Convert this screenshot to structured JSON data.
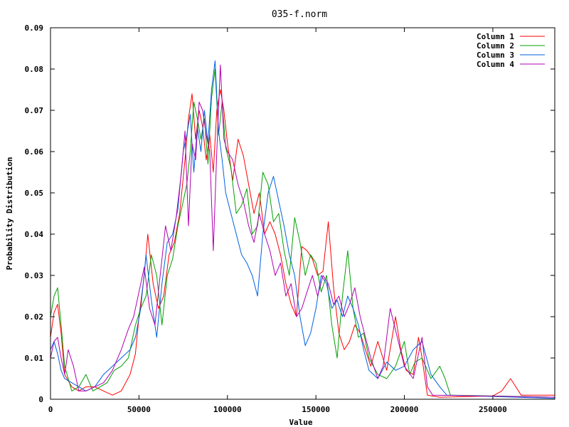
{
  "chart_data": {
    "type": "line",
    "title": "035-f.norm",
    "xlabel": "Value",
    "ylabel": "Probability Distribution",
    "xlim": [
      0,
      285000
    ],
    "ylim": [
      0,
      0.09
    ],
    "xticks": [
      0,
      50000,
      100000,
      150000,
      200000,
      250000
    ],
    "xtick_labels": [
      "0",
      "50000",
      "100000",
      "150000",
      "200000",
      "250000"
    ],
    "yticks": [
      0,
      0.01,
      0.02,
      0.03,
      0.04,
      0.05,
      0.06,
      0.07,
      0.08,
      0.09
    ],
    "ytick_labels": [
      "0",
      "0.01",
      "0.02",
      "0.03",
      "0.04",
      "0.05",
      "0.06",
      "0.07",
      "0.08",
      "0.09"
    ],
    "legend_position": "top-right",
    "grid": false,
    "series": [
      {
        "name": "Column 1",
        "color": "#ff0000",
        "points": [
          [
            0,
            0.015
          ],
          [
            2000,
            0.021
          ],
          [
            4000,
            0.023
          ],
          [
            6000,
            0.016
          ],
          [
            8000,
            0.006
          ],
          [
            12000,
            0.003
          ],
          [
            16000,
            0.002
          ],
          [
            20000,
            0.003
          ],
          [
            25000,
            0.003
          ],
          [
            30000,
            0.002
          ],
          [
            35000,
            0.001
          ],
          [
            40000,
            0.002
          ],
          [
            45000,
            0.006
          ],
          [
            48000,
            0.011
          ],
          [
            50000,
            0.02
          ],
          [
            53000,
            0.03
          ],
          [
            55000,
            0.04
          ],
          [
            58000,
            0.028
          ],
          [
            61000,
            0.022
          ],
          [
            64000,
            0.025
          ],
          [
            67000,
            0.035
          ],
          [
            70000,
            0.038
          ],
          [
            73000,
            0.045
          ],
          [
            76000,
            0.058
          ],
          [
            78000,
            0.068
          ],
          [
            80000,
            0.074
          ],
          [
            82000,
            0.063
          ],
          [
            84000,
            0.07
          ],
          [
            86000,
            0.066
          ],
          [
            88000,
            0.058
          ],
          [
            90000,
            0.064
          ],
          [
            92000,
            0.055
          ],
          [
            94000,
            0.07
          ],
          [
            96000,
            0.075
          ],
          [
            98000,
            0.07
          ],
          [
            100000,
            0.062
          ],
          [
            103000,
            0.053
          ],
          [
            106000,
            0.063
          ],
          [
            109000,
            0.059
          ],
          [
            112000,
            0.052
          ],
          [
            115000,
            0.045
          ],
          [
            118000,
            0.05
          ],
          [
            121000,
            0.04
          ],
          [
            124000,
            0.043
          ],
          [
            127000,
            0.04
          ],
          [
            130000,
            0.035
          ],
          [
            133000,
            0.028
          ],
          [
            136000,
            0.023
          ],
          [
            139000,
            0.02
          ],
          [
            142000,
            0.037
          ],
          [
            145000,
            0.036
          ],
          [
            148000,
            0.034
          ],
          [
            151000,
            0.03
          ],
          [
            154000,
            0.031
          ],
          [
            157000,
            0.043
          ],
          [
            160000,
            0.027
          ],
          [
            163000,
            0.016
          ],
          [
            166000,
            0.012
          ],
          [
            169000,
            0.014
          ],
          [
            172000,
            0.018
          ],
          [
            175000,
            0.016
          ],
          [
            178000,
            0.012
          ],
          [
            181000,
            0.008
          ],
          [
            185000,
            0.014
          ],
          [
            190000,
            0.007
          ],
          [
            195000,
            0.02
          ],
          [
            198000,
            0.012
          ],
          [
            201000,
            0.007
          ],
          [
            205000,
            0.006
          ],
          [
            208000,
            0.015
          ],
          [
            210000,
            0.01
          ],
          [
            213000,
            0.001
          ],
          [
            220000,
            0.0005
          ],
          [
            250000,
            0.0008
          ],
          [
            255000,
            0.002
          ],
          [
            260000,
            0.005
          ],
          [
            263000,
            0.003
          ],
          [
            266000,
            0.001
          ],
          [
            285000,
            0.001
          ]
        ]
      },
      {
        "name": "Column 2",
        "color": "#00a000",
        "points": [
          [
            0,
            0.02
          ],
          [
            2000,
            0.025
          ],
          [
            4000,
            0.027
          ],
          [
            6000,
            0.018
          ],
          [
            8000,
            0.008
          ],
          [
            12000,
            0.002
          ],
          [
            16000,
            0.003
          ],
          [
            20000,
            0.006
          ],
          [
            24000,
            0.002
          ],
          [
            28000,
            0.003
          ],
          [
            32000,
            0.004
          ],
          [
            36000,
            0.007
          ],
          [
            40000,
            0.008
          ],
          [
            44000,
            0.01
          ],
          [
            48000,
            0.018
          ],
          [
            51000,
            0.022
          ],
          [
            54000,
            0.025
          ],
          [
            57000,
            0.035
          ],
          [
            60000,
            0.03
          ],
          [
            63000,
            0.018
          ],
          [
            66000,
            0.03
          ],
          [
            69000,
            0.034
          ],
          [
            72000,
            0.042
          ],
          [
            75000,
            0.048
          ],
          [
            77000,
            0.052
          ],
          [
            79000,
            0.06
          ],
          [
            81000,
            0.072
          ],
          [
            83000,
            0.068
          ],
          [
            85000,
            0.063
          ],
          [
            87000,
            0.068
          ],
          [
            89000,
            0.057
          ],
          [
            91000,
            0.073
          ],
          [
            93000,
            0.08
          ],
          [
            95000,
            0.064
          ],
          [
            97000,
            0.072
          ],
          [
            99000,
            0.061
          ],
          [
            102000,
            0.056
          ],
          [
            105000,
            0.045
          ],
          [
            108000,
            0.047
          ],
          [
            111000,
            0.051
          ],
          [
            114000,
            0.04
          ],
          [
            117000,
            0.042
          ],
          [
            120000,
            0.055
          ],
          [
            123000,
            0.052
          ],
          [
            126000,
            0.043
          ],
          [
            129000,
            0.045
          ],
          [
            132000,
            0.036
          ],
          [
            135000,
            0.03
          ],
          [
            138000,
            0.044
          ],
          [
            141000,
            0.038
          ],
          [
            144000,
            0.03
          ],
          [
            147000,
            0.035
          ],
          [
            150000,
            0.033
          ],
          [
            153000,
            0.026
          ],
          [
            156000,
            0.03
          ],
          [
            159000,
            0.018
          ],
          [
            162000,
            0.01
          ],
          [
            165000,
            0.025
          ],
          [
            168000,
            0.036
          ],
          [
            171000,
            0.022
          ],
          [
            174000,
            0.015
          ],
          [
            177000,
            0.016
          ],
          [
            180000,
            0.01
          ],
          [
            185000,
            0.006
          ],
          [
            190000,
            0.005
          ],
          [
            195000,
            0.008
          ],
          [
            200000,
            0.014
          ],
          [
            203000,
            0.006
          ],
          [
            206000,
            0.009
          ],
          [
            210000,
            0.01
          ],
          [
            215000,
            0.005
          ],
          [
            220000,
            0.008
          ],
          [
            223000,
            0.005
          ],
          [
            226000,
            0.001
          ],
          [
            285000,
            0.0005
          ]
        ]
      },
      {
        "name": "Column 3",
        "color": "#0060e0",
        "points": [
          [
            0,
            0.012
          ],
          [
            2000,
            0.014
          ],
          [
            4000,
            0.011
          ],
          [
            6000,
            0.007
          ],
          [
            8000,
            0.005
          ],
          [
            12000,
            0.004
          ],
          [
            16000,
            0.003
          ],
          [
            20000,
            0.002
          ],
          [
            25000,
            0.003
          ],
          [
            30000,
            0.006
          ],
          [
            35000,
            0.008
          ],
          [
            40000,
            0.01
          ],
          [
            45000,
            0.012
          ],
          [
            48000,
            0.015
          ],
          [
            51000,
            0.022
          ],
          [
            54000,
            0.035
          ],
          [
            57000,
            0.024
          ],
          [
            60000,
            0.015
          ],
          [
            63000,
            0.028
          ],
          [
            66000,
            0.038
          ],
          [
            69000,
            0.04
          ],
          [
            72000,
            0.046
          ],
          [
            75000,
            0.06
          ],
          [
            77000,
            0.064
          ],
          [
            79000,
            0.069
          ],
          [
            81000,
            0.055
          ],
          [
            83000,
            0.066
          ],
          [
            85000,
            0.06
          ],
          [
            87000,
            0.07
          ],
          [
            89000,
            0.062
          ],
          [
            91000,
            0.075
          ],
          [
            93000,
            0.082
          ],
          [
            95000,
            0.065
          ],
          [
            97000,
            0.058
          ],
          [
            99000,
            0.05
          ],
          [
            102000,
            0.045
          ],
          [
            105000,
            0.04
          ],
          [
            108000,
            0.035
          ],
          [
            111000,
            0.033
          ],
          [
            114000,
            0.03
          ],
          [
            117000,
            0.025
          ],
          [
            120000,
            0.04
          ],
          [
            123000,
            0.05
          ],
          [
            126000,
            0.054
          ],
          [
            129000,
            0.048
          ],
          [
            132000,
            0.042
          ],
          [
            135000,
            0.035
          ],
          [
            138000,
            0.03
          ],
          [
            141000,
            0.02
          ],
          [
            144000,
            0.013
          ],
          [
            147000,
            0.016
          ],
          [
            150000,
            0.022
          ],
          [
            153000,
            0.03
          ],
          [
            156000,
            0.028
          ],
          [
            159000,
            0.022
          ],
          [
            162000,
            0.024
          ],
          [
            165000,
            0.02
          ],
          [
            168000,
            0.025
          ],
          [
            171000,
            0.022
          ],
          [
            174000,
            0.018
          ],
          [
            177000,
            0.012
          ],
          [
            180000,
            0.007
          ],
          [
            185000,
            0.005
          ],
          [
            190000,
            0.009
          ],
          [
            195000,
            0.007
          ],
          [
            200000,
            0.008
          ],
          [
            205000,
            0.012
          ],
          [
            210000,
            0.014
          ],
          [
            215000,
            0.006
          ],
          [
            220000,
            0.003
          ],
          [
            224000,
            0.001
          ],
          [
            285000,
            0.0002
          ]
        ]
      },
      {
        "name": "Column 4",
        "color": "#b000b0",
        "points": [
          [
            0,
            0.01
          ],
          [
            2000,
            0.014
          ],
          [
            4000,
            0.015
          ],
          [
            6000,
            0.01
          ],
          [
            8000,
            0.006
          ],
          [
            10000,
            0.012
          ],
          [
            13000,
            0.008
          ],
          [
            16000,
            0.002
          ],
          [
            20000,
            0.002
          ],
          [
            25000,
            0.003
          ],
          [
            30000,
            0.004
          ],
          [
            35000,
            0.007
          ],
          [
            40000,
            0.012
          ],
          [
            44000,
            0.017
          ],
          [
            47000,
            0.02
          ],
          [
            50000,
            0.026
          ],
          [
            53000,
            0.032
          ],
          [
            56000,
            0.022
          ],
          [
            59000,
            0.018
          ],
          [
            62000,
            0.03
          ],
          [
            65000,
            0.042
          ],
          [
            68000,
            0.036
          ],
          [
            71000,
            0.044
          ],
          [
            74000,
            0.055
          ],
          [
            76000,
            0.065
          ],
          [
            78000,
            0.042
          ],
          [
            80000,
            0.062
          ],
          [
            82000,
            0.058
          ],
          [
            84000,
            0.072
          ],
          [
            86000,
            0.07
          ],
          [
            88000,
            0.064
          ],
          [
            90000,
            0.06
          ],
          [
            92000,
            0.036
          ],
          [
            94000,
            0.06
          ],
          [
            96000,
            0.081
          ],
          [
            98000,
            0.063
          ],
          [
            100000,
            0.06
          ],
          [
            103000,
            0.058
          ],
          [
            106000,
            0.052
          ],
          [
            109000,
            0.048
          ],
          [
            112000,
            0.042
          ],
          [
            115000,
            0.038
          ],
          [
            118000,
            0.045
          ],
          [
            121000,
            0.04
          ],
          [
            124000,
            0.036
          ],
          [
            127000,
            0.03
          ],
          [
            130000,
            0.033
          ],
          [
            133000,
            0.025
          ],
          [
            136000,
            0.028
          ],
          [
            139000,
            0.02
          ],
          [
            142000,
            0.022
          ],
          [
            145000,
            0.026
          ],
          [
            148000,
            0.03
          ],
          [
            151000,
            0.025
          ],
          [
            154000,
            0.03
          ],
          [
            157000,
            0.028
          ],
          [
            160000,
            0.023
          ],
          [
            163000,
            0.025
          ],
          [
            166000,
            0.02
          ],
          [
            169000,
            0.023
          ],
          [
            172000,
            0.027
          ],
          [
            175000,
            0.02
          ],
          [
            178000,
            0.015
          ],
          [
            181000,
            0.01
          ],
          [
            185000,
            0.005
          ],
          [
            188000,
            0.008
          ],
          [
            192000,
            0.022
          ],
          [
            196000,
            0.015
          ],
          [
            200000,
            0.008
          ],
          [
            205000,
            0.005
          ],
          [
            210000,
            0.015
          ],
          [
            213000,
            0.003
          ],
          [
            216000,
            0.001
          ],
          [
            285000,
            0.0005
          ]
        ]
      }
    ]
  }
}
